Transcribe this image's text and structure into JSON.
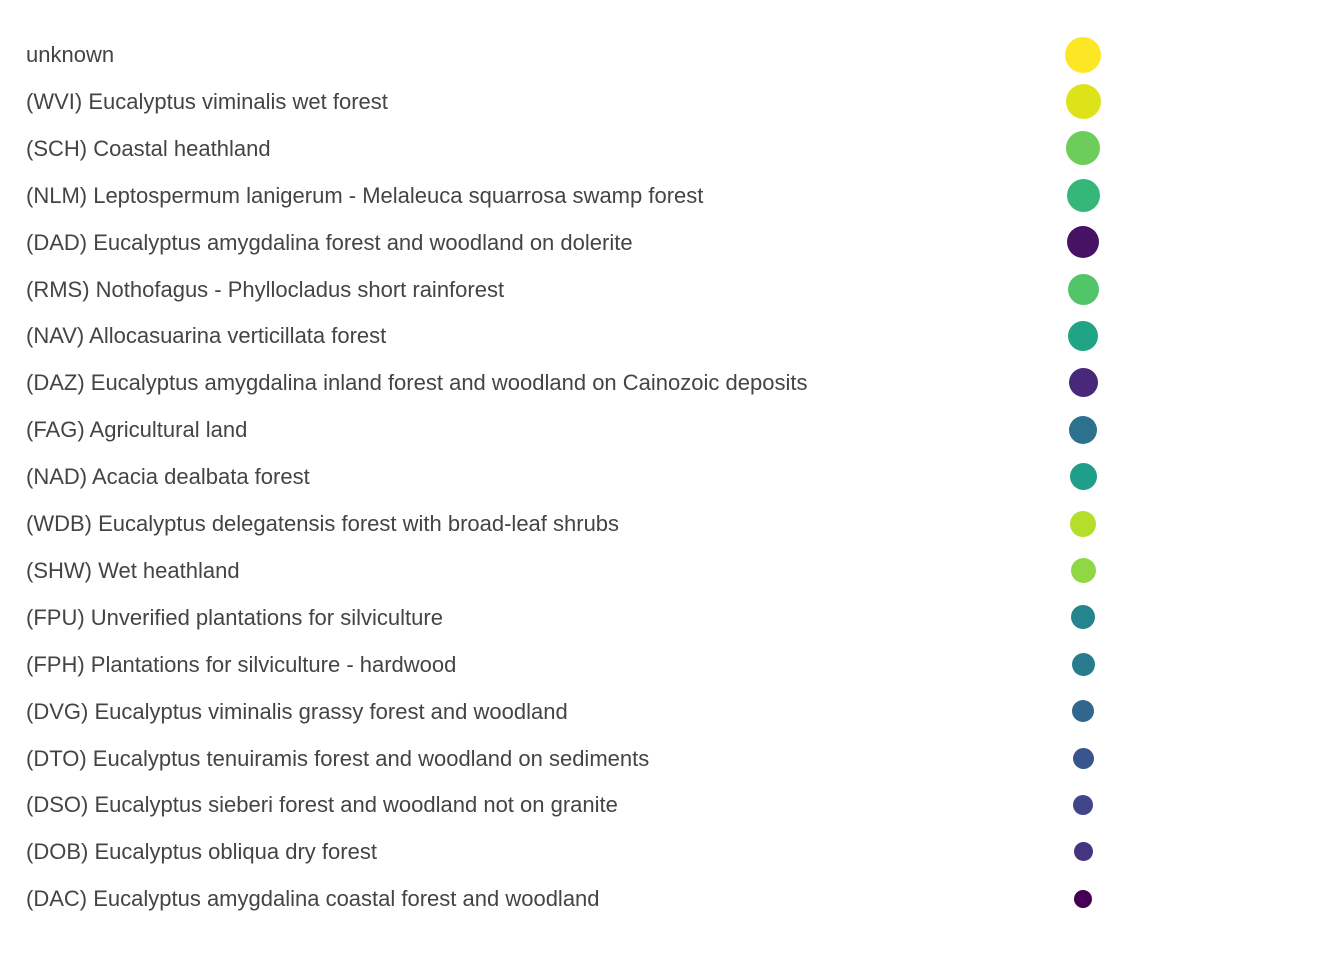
{
  "chart_data": {
    "type": "legend",
    "title": "",
    "size_encoding": "point size decreases from top to bottom",
    "entries": [
      {
        "label": "unknown",
        "color": "#fde725",
        "size": 19
      },
      {
        "label": "(WVI) Eucalyptus viminalis wet forest",
        "color": "#dde318",
        "size": 18
      },
      {
        "label": "(SCH) Coastal heathland",
        "color": "#6ccd5a",
        "size": 17
      },
      {
        "label": "(NLM) Leptospermum lanigerum - Melaleuca squarrosa swamp forest",
        "color": "#35b779",
        "size": 16
      },
      {
        "label": "(DAD) Eucalyptus amygdalina forest and woodland on dolerite",
        "color": "#471164",
        "size": 15
      },
      {
        "label": "(RMS) Nothofagus - Phyllocladus short rainforest",
        "color": "#52c569",
        "size": 14
      },
      {
        "label": "(NAV) Allocasuarina verticillata forest",
        "color": "#20a486",
        "size": 13
      },
      {
        "label": "(DAZ) Eucalyptus amygdalina inland forest and woodland on Cainozoic deposits",
        "color": "#482878",
        "size": 12
      },
      {
        "label": "(FAG) Agricultural land",
        "color": "#2c728e",
        "size": 11
      },
      {
        "label": "(NAD) Acacia dealbata forest",
        "color": "#1f9e89",
        "size": 10
      },
      {
        "label": "(WDB) Eucalyptus delegatensis forest with broad-leaf shrubs",
        "color": "#b5de2b",
        "size": 9
      },
      {
        "label": "(SHW) Wet heathland",
        "color": "#8fd744",
        "size": 8
      },
      {
        "label": "(FPU) Unverified plantations for silviculture",
        "color": "#25858e",
        "size": 7
      },
      {
        "label": "(FPH) Plantations for silviculture - hardwood",
        "color": "#297b8e",
        "size": 6
      },
      {
        "label": "(DVG) Eucalyptus viminalis grassy forest and woodland",
        "color": "#31668e",
        "size": 5
      },
      {
        "label": "(DTO) Eucalyptus tenuiramis forest and woodland on sediments",
        "color": "#39568c",
        "size": 4
      },
      {
        "label": "(DSO) Eucalyptus sieberi forest and woodland not on granite",
        "color": "#404688",
        "size": 3
      },
      {
        "label": "(DOB) Eucalyptus obliqua dry forest",
        "color": "#453581",
        "size": 2
      },
      {
        "label": "(DAC) Eucalyptus amygdalina coastal forest and woodland",
        "color": "#440154",
        "size": 1
      }
    ]
  }
}
